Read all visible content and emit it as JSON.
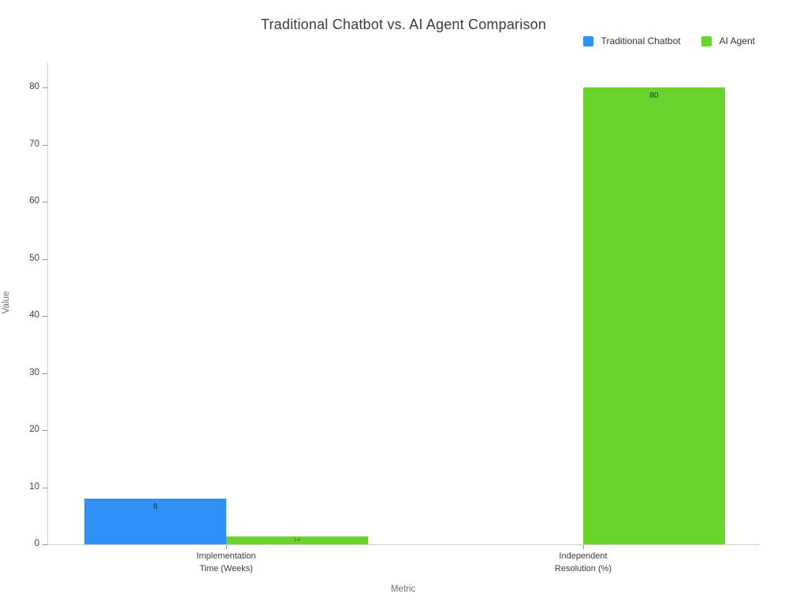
{
  "chart_data": {
    "type": "bar",
    "title": "Traditional Chatbot vs. AI Agent Comparison",
    "xlabel": "Metric",
    "ylabel": "Value",
    "categories": [
      "Implementation\nTime (Weeks)",
      "Independent\nResolution (%)"
    ],
    "series": [
      {
        "name": "Traditional Chatbot",
        "color": "#2F91F5",
        "values": [
          8,
          0
        ]
      },
      {
        "name": "AI Agent",
        "color": "#69D42B",
        "values": [
          1.4,
          80
        ]
      }
    ],
    "ylim": [
      0,
      84
    ],
    "ytick_step": 10,
    "yticks": [
      0,
      10,
      20,
      30,
      40,
      50,
      60,
      70,
      80
    ],
    "grid": false,
    "legend_position": "top-right",
    "axis_color": "#cfcfcf",
    "background_color": "#ffffff"
  }
}
